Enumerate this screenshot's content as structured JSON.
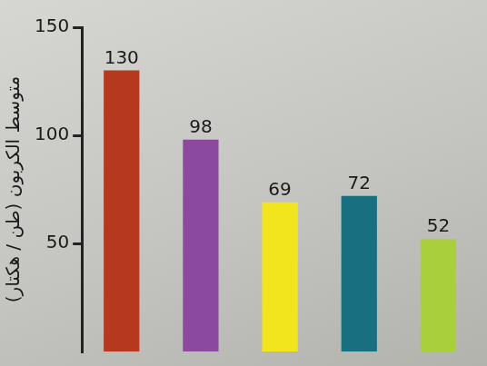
{
  "chart_data": {
    "type": "bar",
    "y_label": "متوسط الكربون (طن / هكتار)",
    "categories": [
      null,
      null,
      null,
      null,
      null
    ],
    "values": [
      130,
      98,
      69,
      72,
      52
    ],
    "colors": [
      "#b5381f",
      "#8b4a9e",
      "#f2e51d",
      "#176f80",
      "#a9cf3c"
    ],
    "ylim": [
      0,
      150
    ],
    "yticks": [
      50,
      100,
      150
    ],
    "grid": false,
    "data_labels": true,
    "tick_labels": "y"
  }
}
